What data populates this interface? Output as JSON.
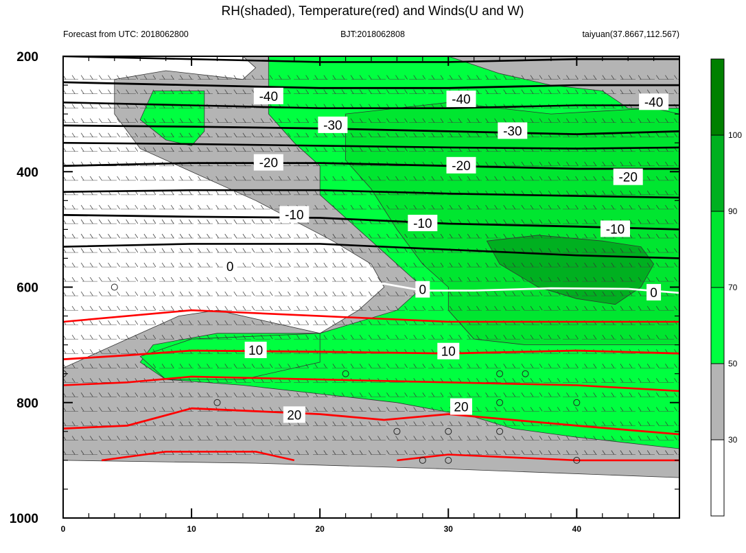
{
  "title": "RH(shaded), Temperature(red) and Winds(U and W)",
  "subtitle_left": "Forecast from UTC: 2018062800",
  "subtitle_center": "BJT:2018062808",
  "subtitle_right": "taiyuan(37.8667,112.567)",
  "chart_data": {
    "type": "heatmap",
    "title": "RH(shaded), Temperature(red) and Winds(U and W)",
    "x_ticks": [
      0,
      10,
      20,
      30,
      40
    ],
    "xlim": [
      0,
      48
    ],
    "y_ticks": [
      200,
      400,
      600,
      800,
      1000
    ],
    "ylim": [
      1000,
      200
    ],
    "y_inverted": true,
    "rh_colorbar": {
      "levels": [
        30,
        50,
        70,
        90,
        100
      ],
      "colors": [
        "#ffffff",
        "#b4b4b4",
        "#00ff40",
        "#00e630",
        "#00b020",
        "#008000"
      ]
    },
    "rh_regions": [
      {
        "rh_class": "30-50",
        "color": "#b4b4b4",
        "polygon": [
          [
            0,
            920
          ],
          [
            0,
            740
          ],
          [
            2,
            720
          ],
          [
            5,
            690
          ],
          [
            9,
            650
          ],
          [
            12,
            640
          ],
          [
            16,
            660
          ],
          [
            20,
            680
          ],
          [
            23,
            640
          ],
          [
            25,
            600
          ],
          [
            24,
            560
          ],
          [
            21,
            520
          ],
          [
            15,
            450
          ],
          [
            10,
            400
          ],
          [
            6,
            360
          ],
          [
            4,
            300
          ],
          [
            4,
            240
          ],
          [
            8,
            225
          ],
          [
            14,
            240
          ],
          [
            15,
            220
          ],
          [
            14,
            200
          ],
          [
            48,
            200
          ],
          [
            48,
            930
          ],
          [
            30,
            915
          ],
          [
            15,
            905
          ],
          [
            0,
            900
          ]
        ]
      },
      {
        "rh_class": "50-70",
        "color": "#00ff40",
        "polygon": [
          [
            7,
            260
          ],
          [
            11,
            260
          ],
          [
            11,
            330
          ],
          [
            10,
            355
          ],
          [
            8,
            345
          ],
          [
            6,
            310
          ]
        ]
      },
      {
        "rh_class": "50-70",
        "color": "#00ff40",
        "polygon": [
          [
            16,
            200
          ],
          [
            30,
            200
          ],
          [
            32,
            215
          ],
          [
            34,
            230
          ],
          [
            38,
            250
          ],
          [
            42,
            260
          ],
          [
            44,
            290
          ],
          [
            48,
            290
          ],
          [
            48,
            880
          ],
          [
            40,
            860
          ],
          [
            35,
            845
          ],
          [
            32,
            825
          ],
          [
            26,
            800
          ],
          [
            20,
            785
          ],
          [
            14,
            770
          ],
          [
            8,
            760
          ],
          [
            6,
            730
          ],
          [
            7,
            700
          ],
          [
            12,
            680
          ],
          [
            20,
            680
          ],
          [
            26,
            640
          ],
          [
            28,
            600
          ],
          [
            26,
            560
          ],
          [
            23,
            500
          ],
          [
            20,
            440
          ],
          [
            20,
            390
          ],
          [
            18,
            350
          ],
          [
            16,
            300
          ]
        ]
      },
      {
        "rh_class": "50-70",
        "color": "#00ff40",
        "polygon": [
          [
            6,
            720
          ],
          [
            10,
            690
          ],
          [
            20,
            680
          ],
          [
            20,
            730
          ],
          [
            14,
            760
          ],
          [
            8,
            760
          ]
        ]
      },
      {
        "rh_class": "70-90",
        "color": "#00e630",
        "polygon": [
          [
            22,
            300
          ],
          [
            30,
            280
          ],
          [
            38,
            300
          ],
          [
            46,
            290
          ],
          [
            48,
            300
          ],
          [
            48,
            700
          ],
          [
            42,
            700
          ],
          [
            36,
            700
          ],
          [
            32,
            690
          ],
          [
            30,
            640
          ],
          [
            30,
            600
          ],
          [
            28,
            560
          ],
          [
            26,
            500
          ],
          [
            24,
            430
          ],
          [
            22,
            380
          ]
        ]
      },
      {
        "rh_class": "90-100",
        "color": "#00b020",
        "polygon": [
          [
            33,
            520
          ],
          [
            37,
            510
          ],
          [
            42,
            520
          ],
          [
            45,
            530
          ],
          [
            46,
            560
          ],
          [
            45,
            600
          ],
          [
            43,
            630
          ],
          [
            40,
            620
          ],
          [
            37,
            600
          ],
          [
            34,
            560
          ]
        ]
      }
    ],
    "temperature_isotherms": [
      {
        "label": "-40",
        "color": "#000000",
        "label_positions": [
          [
            16,
            270
          ],
          [
            31,
            275
          ],
          [
            46,
            280
          ]
        ],
        "points": [
          [
            0,
            245
          ],
          [
            10,
            250
          ],
          [
            20,
            255
          ],
          [
            30,
            255
          ],
          [
            40,
            250
          ],
          [
            48,
            250
          ]
        ]
      },
      {
        "label": "-30",
        "color": "#000000",
        "label_positions": [
          [
            21,
            320
          ],
          [
            35,
            330
          ]
        ],
        "points": [
          [
            0,
            320
          ],
          [
            10,
            322
          ],
          [
            20,
            325
          ],
          [
            30,
            330
          ],
          [
            40,
            335
          ],
          [
            48,
            330
          ]
        ]
      },
      {
        "label": "-20",
        "color": "#000000",
        "label_positions": [
          [
            16,
            385
          ],
          [
            31,
            390
          ],
          [
            44,
            410
          ]
        ],
        "points": [
          [
            0,
            390
          ],
          [
            10,
            385
          ],
          [
            20,
            385
          ],
          [
            30,
            390
          ],
          [
            40,
            395
          ],
          [
            48,
            395
          ]
        ]
      },
      {
        "label": "-10",
        "color": "#000000",
        "label_positions": [
          [
            18,
            475
          ],
          [
            28,
            490
          ],
          [
            43,
            500
          ]
        ],
        "points": [
          [
            0,
            475
          ],
          [
            10,
            478
          ],
          [
            20,
            480
          ],
          [
            30,
            490
          ],
          [
            40,
            495
          ],
          [
            48,
            500
          ]
        ]
      },
      {
        "label": "0",
        "color": "#ffffff",
        "label_positions": [
          [
            13,
            565
          ],
          [
            28,
            605
          ],
          [
            46,
            610
          ]
        ],
        "points": [
          [
            21,
            598
          ],
          [
            25,
            594
          ],
          [
            28,
            606
          ],
          [
            32,
            606
          ],
          [
            38,
            602
          ],
          [
            44,
            603
          ],
          [
            48,
            610
          ]
        ]
      },
      {
        "label": "10",
        "color": "#ff0000",
        "label_positions": [
          [
            15,
            710
          ],
          [
            30,
            712
          ]
        ],
        "points": [
          [
            0,
            725
          ],
          [
            5,
            718
          ],
          [
            10,
            710
          ],
          [
            20,
            712
          ],
          [
            30,
            715
          ],
          [
            40,
            710
          ],
          [
            48,
            715
          ]
        ]
      },
      {
        "label": "20",
        "color": "#ff0000",
        "label_positions": [
          [
            18,
            822
          ],
          [
            31,
            808
          ]
        ],
        "points": [
          [
            0,
            845
          ],
          [
            5,
            840
          ],
          [
            10,
            810
          ],
          [
            20,
            820
          ],
          [
            25,
            830
          ],
          [
            30,
            820
          ],
          [
            35,
            830
          ],
          [
            40,
            840
          ],
          [
            48,
            855
          ]
        ]
      }
    ],
    "additional_contours": [
      {
        "color": "#000000",
        "points": [
          [
            0,
            200
          ],
          [
            10,
            205
          ],
          [
            20,
            210
          ],
          [
            30,
            210
          ],
          [
            40,
            205
          ],
          [
            48,
            205
          ]
        ]
      },
      {
        "color": "#000000",
        "points": [
          [
            0,
            280
          ],
          [
            10,
            285
          ],
          [
            20,
            290
          ],
          [
            30,
            290
          ],
          [
            40,
            285
          ],
          [
            48,
            285
          ]
        ]
      },
      {
        "color": "#000000",
        "points": [
          [
            0,
            350
          ],
          [
            10,
            352
          ],
          [
            20,
            355
          ],
          [
            30,
            358
          ],
          [
            40,
            360
          ],
          [
            48,
            358
          ]
        ]
      },
      {
        "color": "#000000",
        "points": [
          [
            0,
            435
          ],
          [
            10,
            432
          ],
          [
            20,
            432
          ],
          [
            30,
            438
          ],
          [
            40,
            442
          ],
          [
            48,
            445
          ]
        ]
      },
      {
        "color": "#000000",
        "points": [
          [
            0,
            530
          ],
          [
            10,
            525
          ],
          [
            20,
            525
          ],
          [
            30,
            535
          ],
          [
            40,
            545
          ],
          [
            48,
            550
          ]
        ]
      },
      {
        "color": "#ff0000",
        "points": [
          [
            0,
            660
          ],
          [
            5,
            650
          ],
          [
            10,
            640
          ],
          [
            20,
            650
          ],
          [
            30,
            660
          ],
          [
            40,
            660
          ],
          [
            48,
            660
          ]
        ]
      },
      {
        "color": "#ff0000",
        "points": [
          [
            0,
            770
          ],
          [
            5,
            765
          ],
          [
            10,
            755
          ],
          [
            20,
            760
          ],
          [
            30,
            765
          ],
          [
            40,
            770
          ],
          [
            48,
            780
          ]
        ]
      },
      {
        "color": "#ff0000",
        "points": [
          [
            3,
            900
          ],
          [
            8,
            885
          ],
          [
            15,
            885
          ],
          [
            18,
            900
          ]
        ]
      },
      {
        "color": "#ff0000",
        "points": [
          [
            26,
            900
          ],
          [
            30,
            890
          ],
          [
            35,
            895
          ],
          [
            40,
            900
          ],
          [
            48,
            900
          ]
        ]
      }
    ],
    "calm_wind_points": [
      [
        0,
        750
      ],
      [
        4,
        600
      ],
      [
        12,
        800
      ],
      [
        22,
        750
      ],
      [
        26,
        850
      ],
      [
        28,
        900
      ],
      [
        30,
        850
      ],
      [
        30,
        900
      ],
      [
        34,
        750
      ],
      [
        34,
        800
      ],
      [
        34,
        850
      ],
      [
        36,
        750
      ],
      [
        40,
        800
      ],
      [
        40,
        900
      ]
    ]
  }
}
